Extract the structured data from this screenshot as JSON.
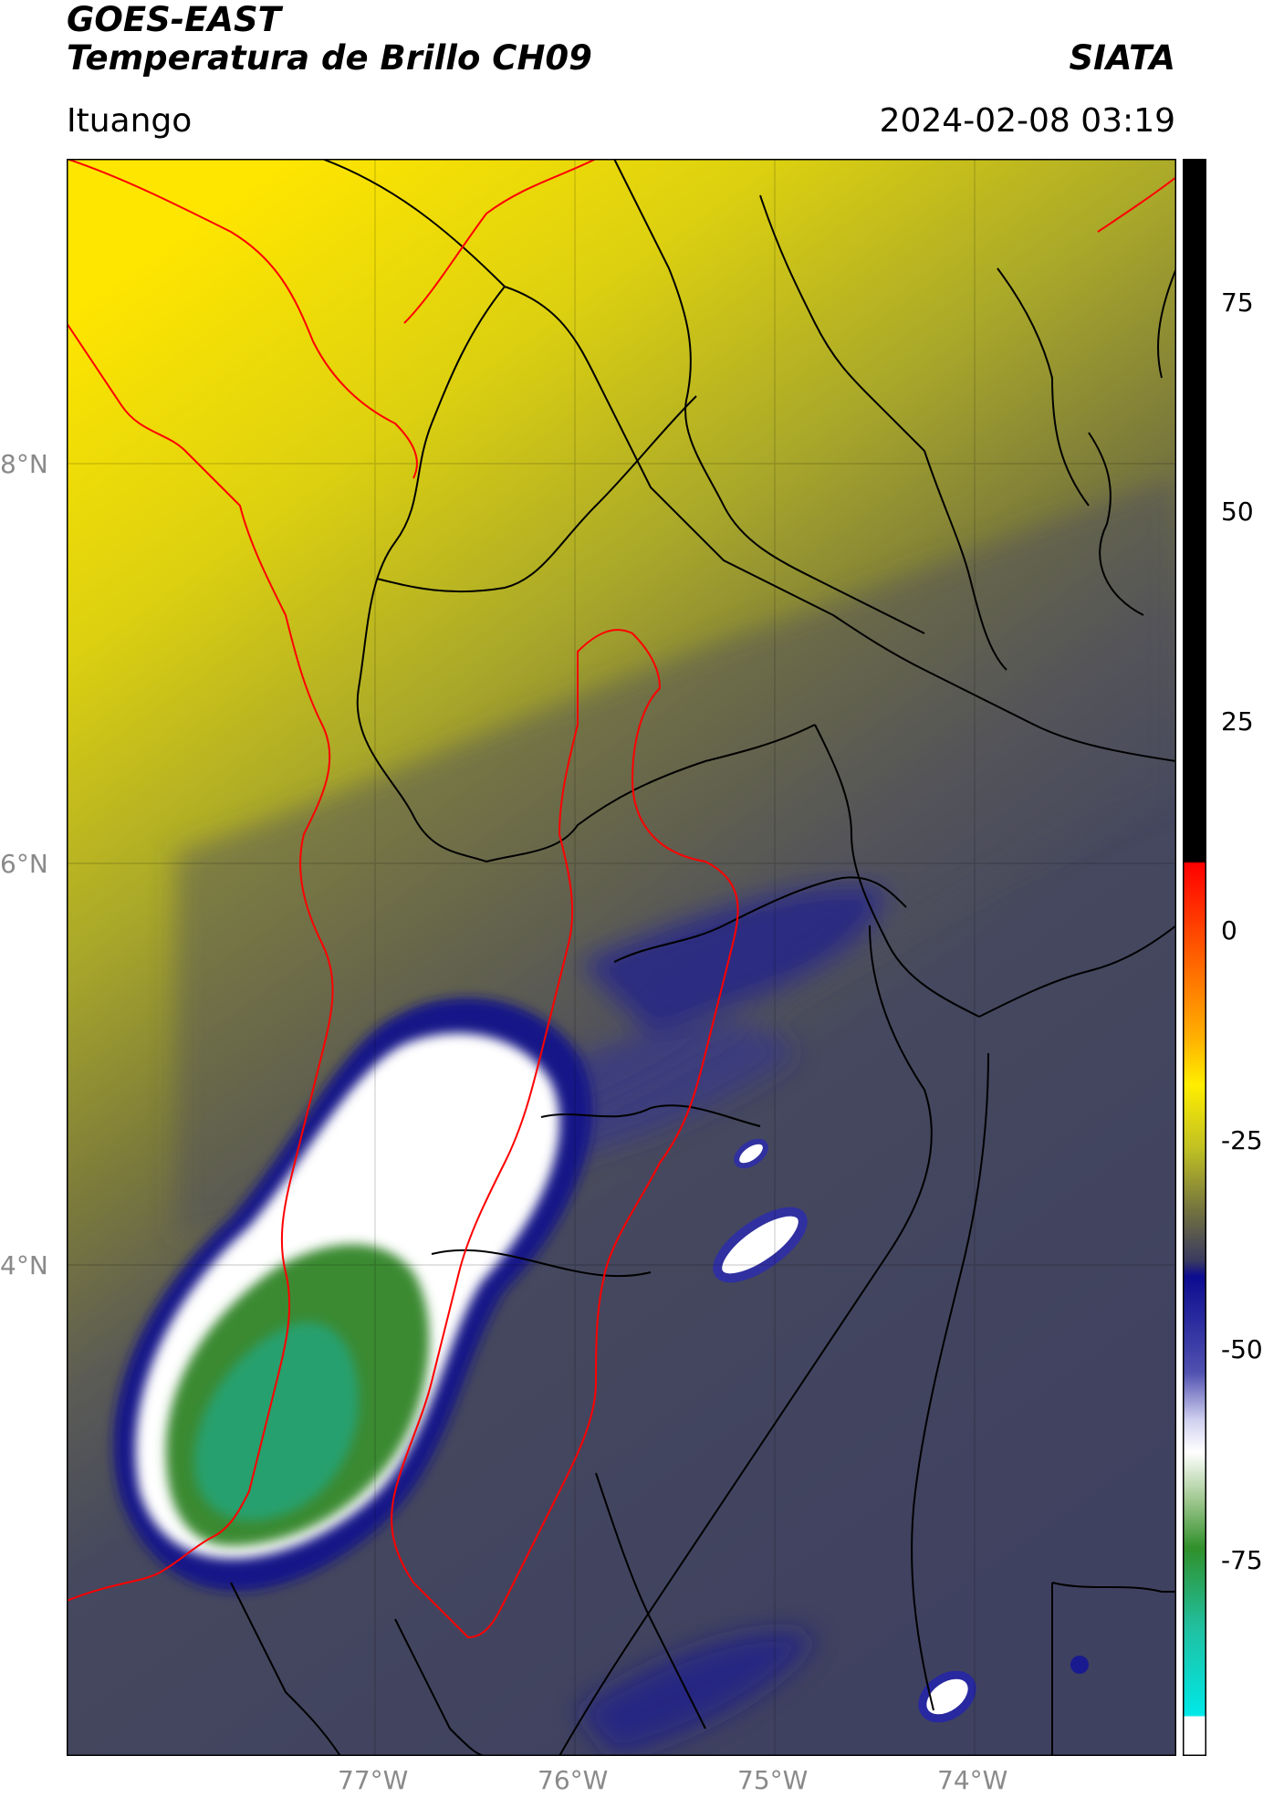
{
  "header": {
    "title_line1": "GOES-EAST",
    "title_line2": "Temperatura de Brillo CH09",
    "brand": "SIATA",
    "location": "Ituango",
    "datetime": "2024-02-08 03:19"
  },
  "map": {
    "lat_labels": [
      "8°N",
      "6°N",
      "4°N"
    ],
    "lon_labels": [
      "77°W",
      "76°W",
      "75°W",
      "74°W"
    ]
  },
  "colorbar": {
    "ticks": [
      "75",
      "50",
      "25",
      "0",
      "-25",
      "-50",
      "-75"
    ],
    "colors": {
      "black": "#000000",
      "red": "#ff0000",
      "orange": "#ff9000",
      "yellow": "#ffee00",
      "olive": "#c0c023",
      "gray": "#606060",
      "navy": "#0c0c90",
      "blue": "#5050b0",
      "white": "#ffffff",
      "green": "#30902a",
      "teal": "#20c0a0",
      "cyan": "#00e8e8"
    }
  },
  "colors": {
    "border_red": "#ff0000",
    "border_black": "#000000"
  }
}
